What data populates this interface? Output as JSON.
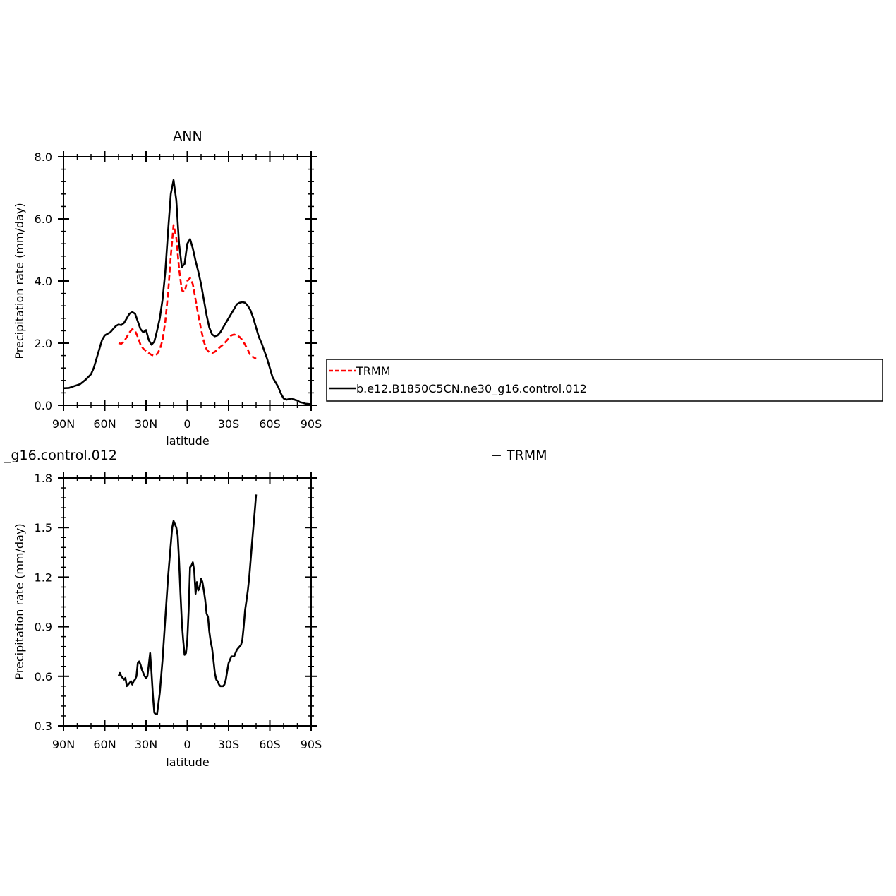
{
  "chart_data": [
    {
      "type": "line",
      "title": "ANN",
      "xlabel": "latitude",
      "ylabel": "Precipitation rate (mm/day)",
      "xlim": [
        90,
        -90
      ],
      "ylim": [
        0,
        8
      ],
      "x_ticks": [
        90,
        60,
        30,
        0,
        -30,
        -60,
        -90
      ],
      "x_tick_labels": [
        "90N",
        "60N",
        "30N",
        "0",
        "30S",
        "60S",
        "90S"
      ],
      "y_ticks": [
        0,
        2,
        4,
        6,
        8
      ],
      "y_tick_labels": [
        "0.0",
        "2.0",
        "4.0",
        "6.0",
        "8.0"
      ],
      "legend": {
        "placement": "right, outside plot"
      },
      "series": [
        {
          "name": "TRMM",
          "color": "#ff0000",
          "style": "dashed",
          "x": [
            50,
            48,
            46,
            44,
            42,
            40,
            38,
            36,
            34,
            32,
            30,
            28,
            26,
            24,
            22,
            20,
            18,
            16,
            14,
            12,
            10,
            8,
            6,
            4,
            2,
            0,
            -2,
            -4,
            -6,
            -8,
            -10,
            -12,
            -14,
            -16,
            -18,
            -20,
            -22,
            -24,
            -26,
            -28,
            -30,
            -32,
            -34,
            -36,
            -38,
            -40,
            -42,
            -44,
            -46,
            -48,
            -50
          ],
          "y": [
            2.0,
            1.98,
            2.05,
            2.2,
            2.35,
            2.45,
            2.4,
            2.2,
            1.95,
            1.82,
            1.75,
            1.68,
            1.62,
            1.6,
            1.65,
            1.8,
            2.1,
            2.7,
            3.6,
            4.8,
            5.8,
            5.4,
            4.4,
            3.7,
            3.65,
            4.0,
            4.1,
            3.9,
            3.4,
            2.9,
            2.45,
            2.05,
            1.8,
            1.7,
            1.68,
            1.72,
            1.8,
            1.88,
            1.95,
            2.05,
            2.15,
            2.25,
            2.28,
            2.25,
            2.2,
            2.1,
            1.95,
            1.78,
            1.6,
            1.55,
            1.5
          ]
        },
        {
          "name": "b.e12.B1850C5CN.ne30_g16.control.012",
          "color": "#000000",
          "style": "solid",
          "x": [
            90,
            86,
            82,
            78,
            74,
            70,
            68,
            66,
            64,
            62,
            60,
            58,
            56,
            54,
            52,
            50,
            48,
            46,
            44,
            42,
            40,
            38,
            36,
            34,
            32,
            30,
            28,
            26,
            24,
            22,
            20,
            18,
            16,
            14,
            12,
            10,
            8,
            6,
            4,
            2,
            0,
            -2,
            -4,
            -6,
            -8,
            -10,
            -12,
            -14,
            -16,
            -18,
            -20,
            -22,
            -24,
            -26,
            -28,
            -30,
            -32,
            -34,
            -36,
            -38,
            -40,
            -42,
            -44,
            -46,
            -48,
            -50,
            -52,
            -54,
            -56,
            -58,
            -60,
            -62,
            -64,
            -66,
            -68,
            -70,
            -72,
            -74,
            -76,
            -78,
            -80,
            -82,
            -84,
            -86,
            -88,
            -90
          ],
          "y": [
            0.55,
            0.56,
            0.62,
            0.68,
            0.82,
            1.0,
            1.2,
            1.5,
            1.8,
            2.1,
            2.25,
            2.3,
            2.35,
            2.45,
            2.55,
            2.6,
            2.58,
            2.65,
            2.8,
            2.95,
            3.0,
            2.95,
            2.7,
            2.45,
            2.35,
            2.42,
            2.1,
            1.95,
            2.05,
            2.4,
            2.8,
            3.4,
            4.3,
            5.6,
            6.8,
            7.25,
            6.6,
            5.2,
            4.45,
            4.55,
            5.2,
            5.35,
            5.05,
            4.65,
            4.3,
            3.9,
            3.4,
            2.9,
            2.5,
            2.28,
            2.22,
            2.25,
            2.35,
            2.5,
            2.65,
            2.8,
            2.95,
            3.1,
            3.25,
            3.3,
            3.32,
            3.3,
            3.2,
            3.05,
            2.8,
            2.5,
            2.2,
            2.0,
            1.75,
            1.5,
            1.2,
            0.9,
            0.75,
            0.6,
            0.38,
            0.22,
            0.18,
            0.2,
            0.22,
            0.18,
            0.15,
            0.1,
            0.08,
            0.05,
            0.04,
            0.03
          ]
        }
      ]
    },
    {
      "type": "line",
      "title": "_g16.control.012",
      "xlabel": "latitude",
      "ylabel": "Precipitation rate (mm/day)",
      "xlim": [
        90,
        -90
      ],
      "ylim": [
        0.3,
        1.8
      ],
      "x_ticks": [
        90,
        60,
        30,
        0,
        -30,
        -60,
        -90
      ],
      "x_tick_labels": [
        "90N",
        "60N",
        "30N",
        "0",
        "30S",
        "60S",
        "90S"
      ],
      "y_ticks": [
        0.3,
        0.6,
        0.9,
        1.2,
        1.5,
        1.8
      ],
      "y_tick_labels": [
        "0.3",
        "0.6",
        "0.9",
        "1.2",
        "1.5",
        "1.8"
      ],
      "right_label": "− TRMM",
      "series": [
        {
          "color": "#000000",
          "style": "solid",
          "x": [
            50,
            49,
            48,
            47,
            46,
            45,
            44,
            43,
            42,
            41,
            40,
            39,
            38,
            37,
            36,
            35,
            34,
            33,
            32,
            31,
            30,
            29,
            28,
            27,
            26,
            25,
            24,
            23,
            22,
            20,
            18,
            16,
            14,
            12,
            11,
            10,
            9,
            8,
            7,
            6,
            5,
            4,
            3,
            2,
            1,
            0,
            -1,
            -2,
            -3,
            -4,
            -5,
            -6,
            -7,
            -8,
            -9,
            -10,
            -11,
            -12,
            -13,
            -14,
            -15,
            -16,
            -17,
            -18,
            -19,
            -20,
            -21,
            -22,
            -23,
            -24,
            -25,
            -26,
            -27,
            -28,
            -29,
            -30,
            -31,
            -32,
            -33,
            -34,
            -35,
            -36,
            -37,
            -38,
            -39,
            -40,
            -41,
            -42,
            -43,
            -44,
            -45,
            -46,
            -47,
            -48,
            -49,
            -50
          ],
          "y": [
            0.6,
            0.62,
            0.6,
            0.59,
            0.58,
            0.59,
            0.54,
            0.55,
            0.56,
            0.57,
            0.55,
            0.57,
            0.58,
            0.6,
            0.68,
            0.69,
            0.67,
            0.64,
            0.62,
            0.6,
            0.59,
            0.6,
            0.67,
            0.74,
            0.62,
            0.48,
            0.38,
            0.37,
            0.37,
            0.5,
            0.7,
            0.95,
            1.2,
            1.4,
            1.5,
            1.54,
            1.52,
            1.5,
            1.45,
            1.3,
            1.1,
            0.93,
            0.82,
            0.73,
            0.74,
            0.82,
            1.0,
            1.26,
            1.27,
            1.29,
            1.24,
            1.1,
            1.17,
            1.12,
            1.14,
            1.19,
            1.17,
            1.12,
            1.06,
            0.98,
            0.96,
            0.87,
            0.81,
            0.77,
            0.7,
            0.62,
            0.58,
            0.57,
            0.55,
            0.54,
            0.54,
            0.54,
            0.55,
            0.58,
            0.63,
            0.68,
            0.7,
            0.72,
            0.72,
            0.72,
            0.74,
            0.76,
            0.77,
            0.78,
            0.79,
            0.82,
            0.9,
            1.0,
            1.06,
            1.12,
            1.2,
            1.3,
            1.4,
            1.5,
            1.6,
            1.7
          ]
        }
      ]
    }
  ]
}
